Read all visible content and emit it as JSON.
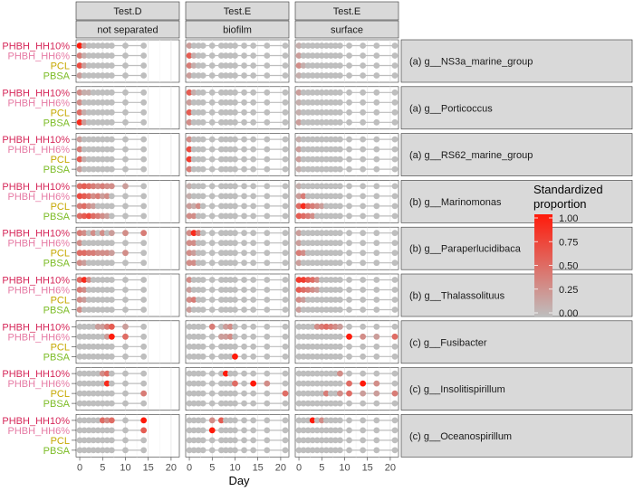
{
  "chart_data": {
    "type": "scatter",
    "title": "",
    "xlabel": "Day",
    "ylabel": "",
    "xlim": [
      -0.8,
      21.8
    ],
    "xticks": [
      0,
      5,
      10,
      15,
      20
    ],
    "grid": true,
    "columns": [
      {
        "header": "Test.D",
        "subheader": "not separated",
        "days": [
          0,
          1,
          2,
          3,
          4,
          5,
          6,
          7,
          10,
          14
        ]
      },
      {
        "header": "Test.E",
        "subheader": "biofilm",
        "days": [
          0,
          1,
          2,
          3,
          5,
          7,
          8,
          9,
          10,
          12,
          14,
          17,
          21
        ]
      },
      {
        "header": "Test.E",
        "subheader": "surface",
        "days": [
          0,
          1,
          2,
          3,
          4,
          5,
          6,
          7,
          8,
          9,
          11,
          14,
          17,
          21
        ]
      }
    ],
    "polymers": [
      {
        "name": "PHBH_HH10%",
        "color": "#d6285a"
      },
      {
        "name": "PHBH_HH6%",
        "color": "#e67aa4"
      },
      {
        "name": "PCL",
        "color": "#c6a800"
      },
      {
        "name": "PBSA",
        "color": "#7cbc26"
      }
    ],
    "legend": {
      "title": "Standardized proportion",
      "ticks": [
        "1.00",
        "0.75",
        "0.50",
        "0.25",
        "0.00"
      ],
      "low_color": "#bebebe",
      "high_color": "#ff1a0a",
      "placement": "right"
    },
    "facets": [
      {
        "label": "(a) g__NS3a_marine_group",
        "values": [
          [
            [
              1.0,
              0.2,
              0
            ],
            [
              0.2,
              0
            ],
            [
              0.1,
              0,
              0,
              0
            ]
          ],
          [
            [
              0.4,
              0.1
            ],
            [
              0.6,
              0.1
            ],
            [
              0.2
            ]
          ],
          [
            [
              0.7,
              0.2
            ],
            [
              0.4,
              0.1
            ],
            [
              0.3,
              0.1
            ]
          ],
          [
            [
              0.2
            ],
            [
              0.2
            ],
            [
              0.1
            ]
          ]
        ]
      },
      {
        "label": "(a) g__Porticoccus",
        "values": [
          [
            [
              0.3,
              0.1,
              0.1
            ],
            [
              0.6,
              0.1
            ],
            [
              0.2
            ]
          ],
          [
            [
              0.3
            ],
            [
              0.2
            ],
            [
              0.1
            ]
          ],
          [
            [
              0.5,
              0.1
            ],
            [
              0.6
            ],
            [
              0.1
            ]
          ],
          [
            [
              0.9,
              0.2
            ],
            [
              0.3
            ],
            [
              0.2
            ]
          ]
        ]
      },
      {
        "label": "(a) g__RS62_marine_group",
        "values": [
          [
            [
              0.2
            ],
            [
              0.3
            ],
            [
              0.1
            ]
          ],
          [
            [
              0.4
            ],
            [
              0.7
            ],
            [
              0.2
            ]
          ],
          [
            [
              0.6,
              0.1
            ],
            [
              0.8
            ],
            [
              0.2
            ]
          ],
          [
            [
              0.2
            ],
            [
              0.4
            ],
            [
              0.1
            ]
          ]
        ]
      },
      {
        "label": "(b) g__Marinomonas",
        "values": [
          [
            [
              0.5,
              0.6,
              0.5,
              0.4,
              0.3,
              0.4,
              0.3,
              0.3,
              0.2
            ],
            [
              0.1
            ],
            [
              0.1
            ]
          ],
          [
            [
              0.7,
              0.6,
              0.5,
              0.3,
              0.4,
              0.2,
              0.3
            ],
            [
              0.1
            ],
            [
              0.2,
              0.4
            ]
          ],
          [
            [
              0.4,
              0.5,
              0.3,
              0.2
            ],
            [
              0.2,
              0.1,
              0.3
            ],
            [
              0.5,
              0.9,
              0.5,
              0.4,
              0.3,
              0.2
            ]
          ],
          [
            [
              0.5,
              0.6,
              0.7,
              0.5,
              0.4,
              0.3,
              0.2
            ],
            [
              0.3,
              0.3
            ],
            [
              0.6,
              0.5,
              0.4,
              0.3
            ]
          ]
        ]
      },
      {
        "label": "(b) g__Paraperlucidibaca",
        "values": [
          [
            [
              0.4,
              0.3,
              0,
              0.3,
              0,
              0.3,
              0,
              0.2,
              0.3,
              0.4
            ],
            [
              0.3,
              0.9,
              0.4
            ],
            [
              0.2
            ]
          ],
          [
            [
              0.3
            ],
            [
              0.3,
              0.3
            ],
            [
              0.2
            ]
          ],
          [
            [
              0.5,
              0.5,
              0.4,
              0.4,
              0.3,
              0.3,
              0.3,
              0.2,
              0.3
            ],
            [
              0.3,
              0.2
            ],
            [
              0.4,
              0.3
            ]
          ],
          [
            [
              0.3,
              0.2
            ],
            [
              0.3,
              0.3
            ],
            [
              0.2
            ]
          ]
        ]
      },
      {
        "label": "(b) g__Thalassolituus",
        "values": [
          [
            [
              0.5,
              0.9,
              0.3
            ],
            [
              0.3
            ],
            [
              0.8,
              0.8,
              0.6,
              0.5,
              0.3
            ]
          ],
          [
            [
              0.4,
              0.3
            ],
            [
              0.2
            ],
            [
              0.6,
              0.5,
              0.4,
              0.3,
              0.2
            ]
          ],
          [
            [
              0.3,
              0.2
            ],
            [
              0.3,
              0.4
            ],
            [
              0.3,
              0.2
            ]
          ],
          [
            [
              0.3
            ],
            [
              0.2
            ],
            [
              0.2
            ]
          ]
        ]
      },
      {
        "label": "(c) g__Fusibacter",
        "values": [
          [
            [
              0,
              0,
              0,
              0,
              0.2,
              0.2,
              0.4,
              0.6,
              0.2
            ],
            [
              0,
              0,
              0,
              0,
              0.4,
              0,
              0.2,
              0.3
            ],
            [
              0,
              0,
              0,
              0,
              0.3,
              0.4,
              0.5,
              0.4,
              0.3,
              0.2
            ]
          ],
          [
            [
              0,
              0,
              0,
              0,
              0,
              0,
              0.2,
              1.0,
              0.5
            ],
            [
              0,
              0,
              0,
              0,
              0,
              0.2,
              0.2,
              0.3
            ],
            [
              0,
              0,
              0,
              0,
              0,
              0,
              0,
              0,
              0,
              0,
              1.0,
              0.3,
              0.2,
              0.5
            ]
          ],
          [
            [
              0
            ],
            [
              0
            ],
            [
              0
            ]
          ],
          [
            [
              0
            ],
            [
              0,
              0,
              0,
              0,
              0,
              0,
              0,
              0,
              1.0
            ],
            [
              0
            ]
          ]
        ]
      },
      {
        "label": "(c) g__Insolitispirillum",
        "values": [
          [
            [
              0,
              0,
              0,
              0,
              0,
              0.3,
              0.5
            ],
            [
              0,
              0,
              0,
              0,
              0,
              0,
              1.0
            ],
            [
              0,
              0,
              0,
              0,
              0,
              0,
              0,
              0,
              0,
              0.3
            ]
          ],
          [
            [
              0,
              0,
              0,
              0,
              0,
              0,
              0.9
            ],
            [
              0,
              0,
              0,
              0,
              0,
              0,
              0,
              0,
              0.5,
              0,
              1.0,
              0.3
            ],
            [
              0,
              0,
              0,
              0,
              0,
              0,
              0,
              0,
              0,
              0,
              0.5,
              1.0,
              0.3
            ]
          ],
          [
            [
              0,
              0,
              0,
              0,
              0,
              0,
              0,
              0,
              0,
              0.4
            ],
            [
              0,
              0,
              0,
              0,
              0,
              0,
              0,
              0,
              0,
              0,
              0,
              0,
              0.5
            ],
            [
              0,
              0,
              0,
              0,
              0,
              0,
              0.4,
              0,
              0,
              0.3,
              0.5,
              0.2,
              0.2,
              0.4
            ]
          ],
          [
            [
              0
            ],
            [
              0
            ],
            [
              0
            ]
          ]
        ]
      },
      {
        "label": "(c) g__Oceanospirillum",
        "values": [
          [
            [
              0,
              0,
              0,
              0,
              0,
              0.5,
              0.3,
              0.5,
              0,
              1.0
            ],
            [
              0,
              0,
              0,
              0,
              0.3,
              0.6
            ],
            [
              0,
              0,
              0,
              1.0,
              0,
              0.3
            ]
          ],
          [
            [
              0,
              0,
              0,
              0,
              0,
              0,
              0,
              0,
              0,
              0.6
            ],
            [
              0,
              0,
              0,
              0,
              1.0
            ],
            [
              0
            ]
          ],
          [
            [
              0
            ],
            [
              0
            ],
            [
              0
            ]
          ],
          [
            [
              0
            ],
            [
              0
            ],
            [
              0
            ]
          ]
        ]
      }
    ]
  }
}
